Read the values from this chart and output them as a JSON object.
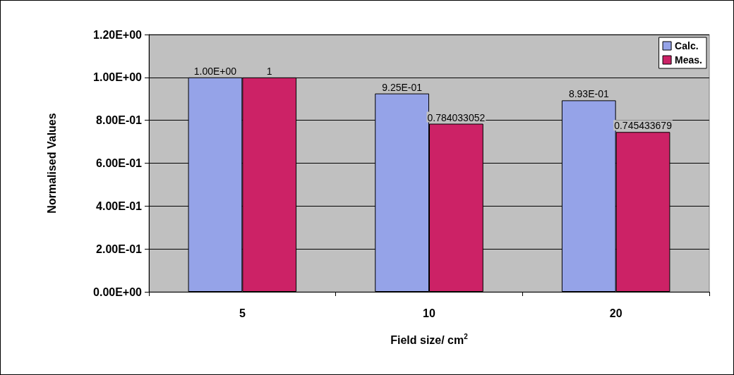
{
  "chart_data": {
    "type": "bar",
    "xlabel": "Field size/ cm$^{2}$",
    "ylabel": "Normalised Values",
    "categories": [
      "5",
      "10",
      "20"
    ],
    "series": [
      {
        "name": "Calc.",
        "color": "#95a3e8",
        "values": [
          1.0,
          0.925,
          0.893
        ],
        "value_labels": [
          "1.00E+00",
          "9.25E-01",
          "8.93E-01"
        ]
      },
      {
        "name": "Meas.",
        "color": "#cc2266",
        "values": [
          1,
          0.784033052,
          0.745433679
        ],
        "value_labels": [
          "1",
          "0.784033052",
          "0.745433679"
        ]
      }
    ],
    "ylim": [
      0,
      1.2
    ],
    "yticks": [
      {
        "value": 0,
        "label": "0.00E+00"
      },
      {
        "value": 0.2,
        "label": "2.00E-01"
      },
      {
        "value": 0.4,
        "label": "4.00E-01"
      },
      {
        "value": 0.6,
        "label": "6.00E-01"
      },
      {
        "value": 0.8,
        "label": "8.00E-01"
      },
      {
        "value": 1.0,
        "label": "1.00E+00"
      },
      {
        "value": 1.2,
        "label": "1.20E+00"
      }
    ],
    "grid": "y",
    "legend": "top right"
  }
}
